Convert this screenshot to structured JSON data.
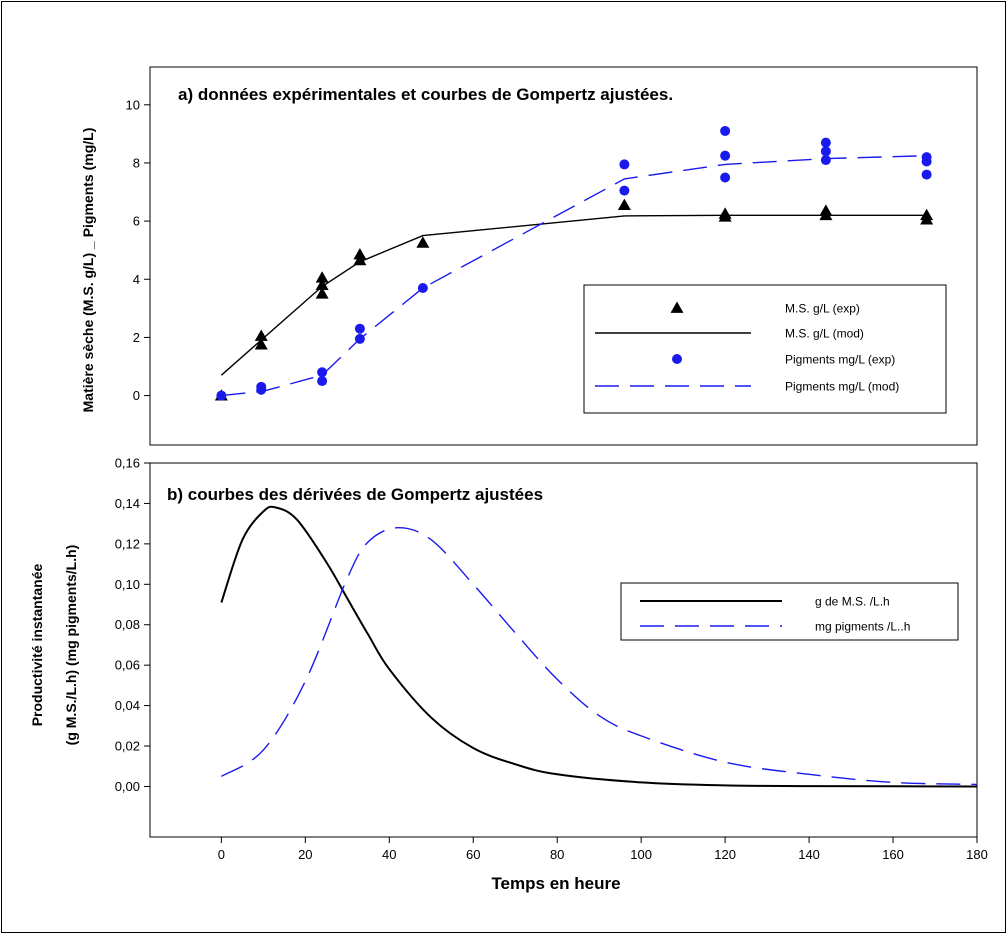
{
  "chart_data": [
    {
      "type": "scatter",
      "title": "a) données expérimentales et courbes de Gompertz ajustées.",
      "ylabel": "Matière sèche (M.S. g/L) _ Pigments (mg/L)",
      "xlabel": "",
      "xlim": [
        -17,
        180
      ],
      "ylim": [
        -1.7,
        11.3
      ],
      "yticks": [
        0,
        2,
        4,
        6,
        8,
        10
      ],
      "ytick_labels": [
        "0",
        "2",
        "4",
        "6",
        "8",
        "10"
      ],
      "legend_position": "right",
      "series": [
        {
          "name": "M.S. g/L (exp)",
          "kind": "scatter",
          "marker": "triangle",
          "color": "#000000",
          "x": [
            0,
            9.5,
            9.5,
            24,
            24,
            24,
            33,
            33,
            48,
            96,
            120,
            120,
            144,
            144,
            168,
            168
          ],
          "y": [
            0.0,
            2.05,
            1.75,
            4.05,
            3.8,
            3.5,
            4.85,
            4.65,
            5.25,
            6.55,
            6.25,
            6.15,
            6.35,
            6.2,
            6.2,
            6.05
          ]
        },
        {
          "name": "M.S. g/L (mod)",
          "kind": "line",
          "dash": "solid",
          "color": "#000000",
          "x": [
            0,
            24,
            33,
            48,
            96,
            120,
            144,
            168
          ],
          "y": [
            0.7,
            3.75,
            4.6,
            5.5,
            6.18,
            6.2,
            6.2,
            6.2
          ]
        },
        {
          "name": "Pigments mg/L (exp)",
          "kind": "scatter",
          "marker": "circle",
          "color": "#1a1aee",
          "x": [
            0,
            9.5,
            9.5,
            24,
            24,
            33,
            33,
            48,
            96,
            96,
            120,
            120,
            120,
            144,
            144,
            144,
            168,
            168,
            168
          ],
          "y": [
            0.0,
            0.3,
            0.2,
            0.8,
            0.5,
            2.3,
            1.95,
            3.7,
            7.95,
            7.05,
            9.1,
            8.25,
            7.5,
            8.7,
            8.4,
            8.1,
            8.2,
            8.05,
            7.6
          ]
        },
        {
          "name": "Pigments mg/L (mod)",
          "kind": "line",
          "dash": "long-dash",
          "color": "#1a1aee",
          "x": [
            0,
            10,
            24,
            33,
            48,
            96,
            120,
            144,
            168
          ],
          "y": [
            0.0,
            0.15,
            0.7,
            1.95,
            3.7,
            7.45,
            7.95,
            8.15,
            8.25
          ]
        }
      ]
    },
    {
      "type": "line",
      "title": "b) courbes des dérivées de Gompertz ajustées",
      "ylabel": "Productivité instantanée",
      "ylabel2": "(g M.S./L.h)  (mg pigments/L.h)",
      "xlabel": "Temps en heure",
      "xlim": [
        -17,
        180
      ],
      "xticks": [
        0,
        20,
        40,
        60,
        80,
        100,
        120,
        140,
        160,
        180
      ],
      "xtick_labels": [
        "0",
        "20",
        "40",
        "60",
        "80",
        "100",
        "120",
        "140",
        "160",
        "180"
      ],
      "ylim": [
        -0.025,
        0.16
      ],
      "yticks": [
        0,
        0.02,
        0.04,
        0.06,
        0.08,
        0.1,
        0.12,
        0.14,
        0.16
      ],
      "ytick_labels": [
        "0,00",
        "0,02",
        "0,04",
        "0,06",
        "0,08",
        "0,10",
        "0,12",
        "0,14",
        "0,16"
      ],
      "legend_position": "top-right",
      "series": [
        {
          "name": "g de M.S. /L.h",
          "kind": "line",
          "dash": "solid",
          "color": "#000000",
          "x": [
            0,
            5,
            10,
            13,
            18,
            25,
            30,
            35,
            40,
            50,
            60,
            70,
            80,
            100,
            120,
            140,
            160,
            180
          ],
          "y": [
            0.091,
            0.122,
            0.136,
            0.138,
            0.132,
            0.111,
            0.093,
            0.075,
            0.058,
            0.034,
            0.019,
            0.011,
            0.006,
            0.002,
            0.0005,
            0.0002,
            0.0001,
            0.0
          ]
        },
        {
          "name": "mg pigments /L..h",
          "kind": "line",
          "dash": "long-dash",
          "color": "#1a1aee",
          "x": [
            0,
            10,
            20,
            30,
            35,
            42,
            50,
            60,
            70,
            80,
            90,
            100,
            120,
            140,
            160,
            180
          ],
          "y": [
            0.005,
            0.018,
            0.052,
            0.103,
            0.121,
            0.128,
            0.122,
            0.1,
            0.076,
            0.053,
            0.035,
            0.025,
            0.012,
            0.006,
            0.002,
            0.001
          ]
        }
      ]
    }
  ]
}
